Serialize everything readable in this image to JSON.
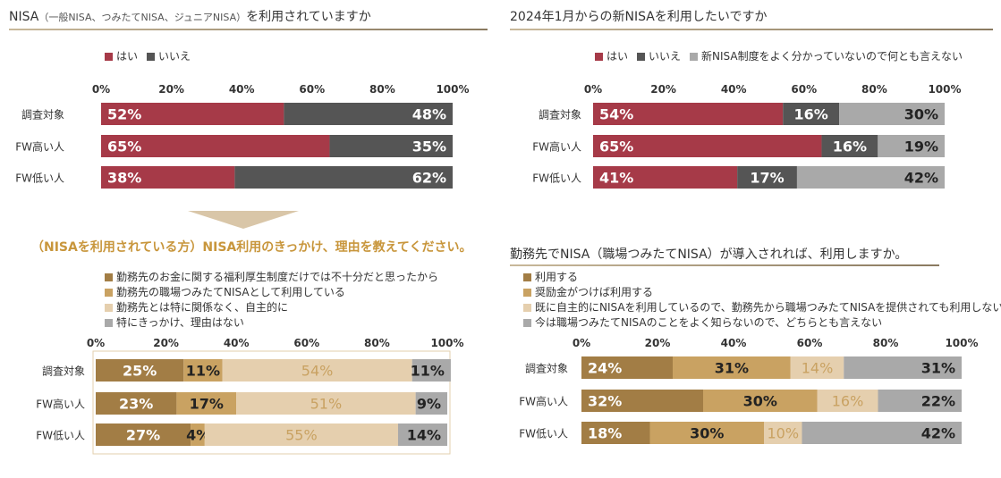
{
  "panels": {
    "p1": {
      "title": "NISA",
      "title_note": "（一般NISA、つみたてNISA、ジュニアNISA）",
      "title_tail": "を利用されていますか"
    },
    "p2": {
      "title": "2024年1月からの新NISAを利用したいですか"
    },
    "p3": {
      "heading": "（NISAを利用されている方）NISA利用のきっかけ、理由を教えてください。"
    },
    "p4": {
      "title": "勤務先でNISA（職場つみたてNISA）が導入されれば、利用しますか。"
    }
  },
  "chart_data": [
    {
      "type": "bar",
      "stacked": "100%",
      "orientation": "horizontal",
      "categories": [
        "調査対象",
        "FW高い人",
        "FW低い人"
      ],
      "series": [
        {
          "name": "はい",
          "color": "#a63a48",
          "values": [
            52,
            65,
            38
          ]
        },
        {
          "name": "いいえ",
          "color": "#555555",
          "values": [
            48,
            35,
            62
          ]
        }
      ],
      "xlim": [
        0,
        100
      ],
      "xticks": [
        "0%",
        "20%",
        "40%",
        "60%",
        "80%",
        "100%"
      ],
      "legend": "top",
      "grid": false
    },
    {
      "type": "bar",
      "stacked": "100%",
      "orientation": "horizontal",
      "categories": [
        "調査対象",
        "FW高い人",
        "FW低い人"
      ],
      "series": [
        {
          "name": "はい",
          "color": "#a63a48",
          "values": [
            54,
            65,
            41
          ]
        },
        {
          "name": "いいえ",
          "color": "#555555",
          "values": [
            16,
            16,
            17
          ]
        },
        {
          "name": "新NISA制度をよく分かっていないので何とも言えない",
          "color": "#a9a9a9",
          "values": [
            30,
            19,
            42
          ]
        }
      ],
      "xlim": [
        0,
        100
      ],
      "xticks": [
        "0%",
        "20%",
        "40%",
        "60%",
        "80%",
        "100%"
      ],
      "legend": "top",
      "grid": false
    },
    {
      "type": "bar",
      "stacked": "100%",
      "orientation": "horizontal",
      "categories": [
        "調査対象",
        "FW高い人",
        "FW低い人"
      ],
      "series": [
        {
          "name": "勤務先のお金に関する福利厚生制度だけでは不十分だと思ったから",
          "color": "#a27d45",
          "values": [
            25,
            23,
            27
          ]
        },
        {
          "name": "勤務先の職場つみたてNISAとして利用している",
          "color": "#c9a262",
          "values": [
            11,
            17,
            4
          ]
        },
        {
          "name": "勤務先とは特に関係なく、自主的に",
          "color": "#e5cfae",
          "values": [
            54,
            51,
            55
          ]
        },
        {
          "name": "特にきっかけ、理由はない",
          "color": "#a9a9a9",
          "values": [
            11,
            9,
            14
          ]
        }
      ],
      "xlim": [
        0,
        100
      ],
      "xticks": [
        "0%",
        "20%",
        "40%",
        "60%",
        "80%",
        "100%"
      ],
      "legend": "top",
      "grid": false
    },
    {
      "type": "bar",
      "stacked": "100%",
      "orientation": "horizontal",
      "categories": [
        "調査対象",
        "FW高い人",
        "FW低い人"
      ],
      "series": [
        {
          "name": "利用する",
          "color": "#a27d45",
          "values": [
            24,
            32,
            18
          ]
        },
        {
          "name": "奨励金がつけば利用する",
          "color": "#c9a262",
          "values": [
            31,
            30,
            30
          ]
        },
        {
          "name": "既に自主的にNISAを利用しているので、勤務先から職場つみたてNISAを提供されても利用しない",
          "color": "#e5cfae",
          "values": [
            14,
            16,
            10
          ]
        },
        {
          "name": "今は職場つみたてNISAのことをよく知らないので、どちらとも言えない",
          "color": "#a9a9a9",
          "values": [
            31,
            22,
            42
          ]
        }
      ],
      "xlim": [
        0,
        100
      ],
      "xticks": [
        "0%",
        "20%",
        "40%",
        "60%",
        "80%",
        "100%"
      ],
      "legend": "top",
      "grid": false
    }
  ]
}
